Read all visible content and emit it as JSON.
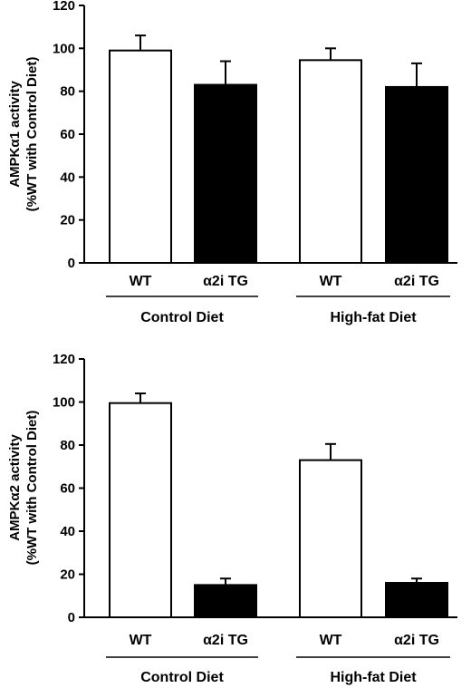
{
  "chart_data": [
    {
      "type": "bar",
      "ylabel": "AMPKα1 activity",
      "ylabel2": "(%WT with Control Diet)",
      "ylim": [
        0,
        120
      ],
      "yticks": [
        0,
        20,
        40,
        60,
        80,
        100,
        120
      ],
      "groups": [
        "Control Diet",
        "High-fat Diet"
      ],
      "categories": [
        "WT",
        "α2i TG",
        "WT",
        "α2i TG"
      ],
      "values": [
        99,
        83,
        94.5,
        82
      ],
      "errors": [
        7,
        11,
        5.5,
        11
      ],
      "fills": [
        "white",
        "black",
        "white",
        "black"
      ]
    },
    {
      "type": "bar",
      "ylabel": "AMPKα2 activity",
      "ylabel2": "(%WT with Control Diet)",
      "ylim": [
        0,
        120
      ],
      "yticks": [
        0,
        20,
        40,
        60,
        80,
        100,
        120
      ],
      "groups": [
        "Control Diet",
        "High-fat Diet"
      ],
      "categories": [
        "WT",
        "α2i TG",
        "WT",
        "α2i TG"
      ],
      "values": [
        99.5,
        15,
        73,
        16
      ],
      "errors": [
        4.5,
        3,
        7.5,
        2
      ]
    }
  ],
  "colors": {
    "bar_wt": "#ffffff",
    "bar_tg": "#000000",
    "axis": "#000000"
  }
}
